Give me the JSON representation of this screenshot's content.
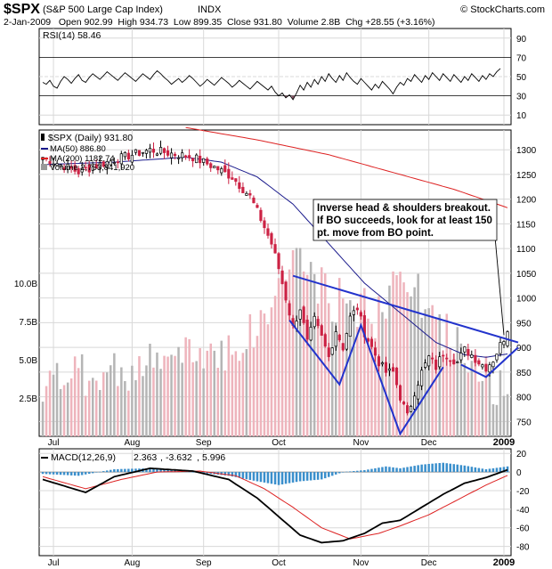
{
  "header": {
    "symbol": "$SPX",
    "name": "(S&P 500 Large Cap Index)",
    "exchange": "INDX",
    "watermark": "© StockCharts.com",
    "quote_line": "2-Jan-2009   Open 902.99  High 934.73  Low 899.35  Close 931.80  Volume 2.8B  Chg +28.55 (+3.16%)"
  },
  "months": [
    {
      "label": "Jul",
      "idx": 3
    },
    {
      "label": "Aug",
      "idx": 25
    },
    {
      "label": "Sep",
      "idx": 45
    },
    {
      "label": "Oct",
      "idx": 66
    },
    {
      "label": "Nov",
      "idx": 89
    },
    {
      "label": "Dec",
      "idx": 108
    },
    {
      "label": "2009",
      "idx": 129
    }
  ],
  "chart_data": [
    {
      "type": "line",
      "name": "rsi-panel",
      "legend": "RSI(14) 58.46",
      "ylim": [
        0,
        100
      ],
      "ticks": [
        10,
        30,
        50,
        70,
        90
      ],
      "ref_lines": [
        30,
        70
      ],
      "values": [
        44,
        42,
        46,
        40,
        38,
        45,
        50,
        47,
        43,
        48,
        52,
        46,
        44,
        49,
        53,
        50,
        47,
        51,
        55,
        52,
        49,
        46,
        50,
        54,
        51,
        48,
        45,
        49,
        53,
        50,
        47,
        52,
        56,
        53,
        49,
        46,
        42,
        45,
        48,
        44,
        47,
        51,
        48,
        44,
        40,
        43,
        47,
        44,
        41,
        45,
        49,
        46,
        43,
        39,
        42,
        46,
        43,
        40,
        37,
        41,
        45,
        42,
        39,
        36,
        40,
        34,
        30,
        33,
        28,
        31,
        26,
        33,
        41,
        36,
        44,
        39,
        47,
        42,
        50,
        45,
        53,
        48,
        44,
        51,
        46,
        54,
        49,
        45,
        42,
        48,
        44,
        40,
        36,
        42,
        38,
        45,
        41,
        37,
        32,
        39,
        44,
        41,
        48,
        45,
        52,
        48,
        44,
        51,
        47,
        54,
        50,
        46,
        53,
        49,
        45,
        52,
        48,
        44,
        50,
        46,
        53,
        49,
        45,
        51,
        47,
        53,
        50,
        55,
        58.46
      ]
    },
    {
      "type": "candlestick",
      "name": "price-panel",
      "legend": {
        "main": "$SPX (Daily) 931.80",
        "ma50": "MA(50) 886.80",
        "ma200": "MA(200) 1182.74",
        "volume": "Volume 2,753,841,920"
      },
      "ylim": [
        720,
        1340
      ],
      "ticks": [
        750,
        800,
        850,
        900,
        950,
        1000,
        1050,
        1100,
        1150,
        1200,
        1250,
        1300
      ],
      "volume_ticks": [
        "2.5B",
        "5.0B",
        "7.5B",
        "10.0B"
      ],
      "volume_tick_values": [
        2.5,
        5.0,
        7.5,
        10.0
      ],
      "volume_ylim": [
        0,
        20
      ],
      "close_path": [
        [
          0,
          1285
        ],
        [
          10,
          1255
        ],
        [
          20,
          1280
        ],
        [
          30,
          1300
        ],
        [
          42,
          1285
        ],
        [
          48,
          1265
        ],
        [
          53,
          1245
        ],
        [
          58,
          1205
        ],
        [
          61,
          1160
        ],
        [
          64,
          1110
        ],
        [
          66,
          1060
        ],
        [
          68,
          1000
        ],
        [
          70,
          940
        ],
        [
          72,
          980
        ],
        [
          74,
          910
        ],
        [
          76,
          955
        ],
        [
          78,
          920
        ],
        [
          80,
          880
        ],
        [
          82,
          935
        ],
        [
          84,
          900
        ],
        [
          86,
          960
        ],
        [
          88,
          980
        ],
        [
          90,
          930
        ],
        [
          92,
          900
        ],
        [
          94,
          870
        ],
        [
          96,
          850
        ],
        [
          98,
          850
        ],
        [
          100,
          800
        ],
        [
          102,
          760
        ],
        [
          104,
          810
        ],
        [
          106,
          850
        ],
        [
          108,
          880
        ],
        [
          110,
          860
        ],
        [
          112,
          890
        ],
        [
          114,
          880
        ],
        [
          116,
          870
        ],
        [
          118,
          895
        ],
        [
          120,
          885
        ],
        [
          122,
          870
        ],
        [
          124,
          860
        ],
        [
          126,
          875
        ],
        [
          128,
          905
        ],
        [
          130,
          931.8
        ]
      ],
      "ma50_path": [
        [
          0,
          1270
        ],
        [
          20,
          1275
        ],
        [
          40,
          1285
        ],
        [
          50,
          1275
        ],
        [
          60,
          1245
        ],
        [
          70,
          1190
        ],
        [
          80,
          1110
        ],
        [
          90,
          1030
        ],
        [
          100,
          970
        ],
        [
          110,
          910
        ],
        [
          118,
          885
        ],
        [
          124,
          880
        ],
        [
          130,
          886.8
        ]
      ],
      "ma200_path": [
        [
          40,
          1345
        ],
        [
          60,
          1320
        ],
        [
          80,
          1290
        ],
        [
          100,
          1250
        ],
        [
          115,
          1220
        ],
        [
          130,
          1182.74
        ]
      ],
      "volume_path": [
        [
          0,
          3.5
        ],
        [
          20,
          4.2
        ],
        [
          40,
          5.2
        ],
        [
          55,
          6.0
        ],
        [
          62,
          7.5
        ],
        [
          70,
          12.0
        ],
        [
          80,
          9.0
        ],
        [
          90,
          8.5
        ],
        [
          95,
          7.5
        ],
        [
          100,
          11.5
        ],
        [
          110,
          7.0
        ],
        [
          120,
          5.5
        ],
        [
          125,
          3.5
        ],
        [
          130,
          2.75
        ]
      ],
      "annotation": {
        "lines": [
          "Inverse head & shoulders breakout.",
          "If BO succeeds, look for at least 150",
          "pt. move from BO point."
        ],
        "color": "#0000cc"
      },
      "pattern": {
        "neckline": [
          [
            70,
            1045
          ],
          [
            133,
            910
          ]
        ],
        "shoulders_head": [
          [
            69,
            955
          ],
          [
            83,
            825
          ],
          [
            89,
            945
          ],
          [
            100,
            725
          ],
          [
            112,
            860
          ]
        ],
        "right_shoulder": [
          [
            117,
            865
          ],
          [
            124,
            840
          ],
          [
            133,
            900
          ]
        ],
        "arrow_to": [
          129,
          925
        ],
        "color": "#2233cc"
      }
    },
    {
      "type": "bar+line",
      "name": "macd-panel",
      "legend": {
        "label": "MACD(12,26,9)",
        "macd": "2.363",
        "signal": "-3.632",
        "hist": "5.996"
      },
      "ylim": [
        -90,
        25
      ],
      "ticks": [
        -80,
        -60,
        -40,
        -20,
        0,
        20
      ],
      "macd_path": [
        [
          0,
          -8
        ],
        [
          12,
          -22
        ],
        [
          20,
          -5
        ],
        [
          30,
          4
        ],
        [
          42,
          1
        ],
        [
          52,
          -8
        ],
        [
          60,
          -28
        ],
        [
          66,
          -48
        ],
        [
          72,
          -68
        ],
        [
          78,
          -76
        ],
        [
          84,
          -74
        ],
        [
          90,
          -66
        ],
        [
          95,
          -55
        ],
        [
          100,
          -52
        ],
        [
          106,
          -38
        ],
        [
          112,
          -24
        ],
        [
          118,
          -12
        ],
        [
          124,
          -6
        ],
        [
          130,
          2.363
        ]
      ],
      "signal_path": [
        [
          0,
          -5
        ],
        [
          12,
          -18
        ],
        [
          22,
          -8
        ],
        [
          32,
          0
        ],
        [
          44,
          1
        ],
        [
          54,
          -4
        ],
        [
          62,
          -18
        ],
        [
          70,
          -38
        ],
        [
          78,
          -60
        ],
        [
          86,
          -72
        ],
        [
          94,
          -66
        ],
        [
          100,
          -58
        ],
        [
          108,
          -46
        ],
        [
          116,
          -30
        ],
        [
          124,
          -14
        ],
        [
          130,
          -3.632
        ]
      ],
      "hist_path": [
        [
          0,
          -2
        ],
        [
          10,
          -4
        ],
        [
          20,
          3
        ],
        [
          30,
          4
        ],
        [
          42,
          0
        ],
        [
          52,
          -4
        ],
        [
          60,
          -10
        ],
        [
          66,
          -14
        ],
        [
          72,
          -10
        ],
        [
          78,
          -8
        ],
        [
          84,
          0
        ],
        [
          90,
          2
        ],
        [
          96,
          6
        ],
        [
          100,
          4
        ],
        [
          106,
          8
        ],
        [
          112,
          10
        ],
        [
          118,
          7
        ],
        [
          124,
          3
        ],
        [
          130,
          5.996
        ]
      ]
    }
  ],
  "colors": {
    "grid": "#d8d8d8",
    "panel_border": "#000000",
    "up_candle": "#ffffff",
    "down_candle": "#cc2244",
    "ma50": "#1a1a8c",
    "ma200": "#dd2222",
    "volume_up": "#b5b5b5",
    "volume_down": "#eeb4bc",
    "macd": "#000000",
    "signal": "#dd2222",
    "histogram": "#3a8fcc",
    "pattern": "#2233cc"
  }
}
